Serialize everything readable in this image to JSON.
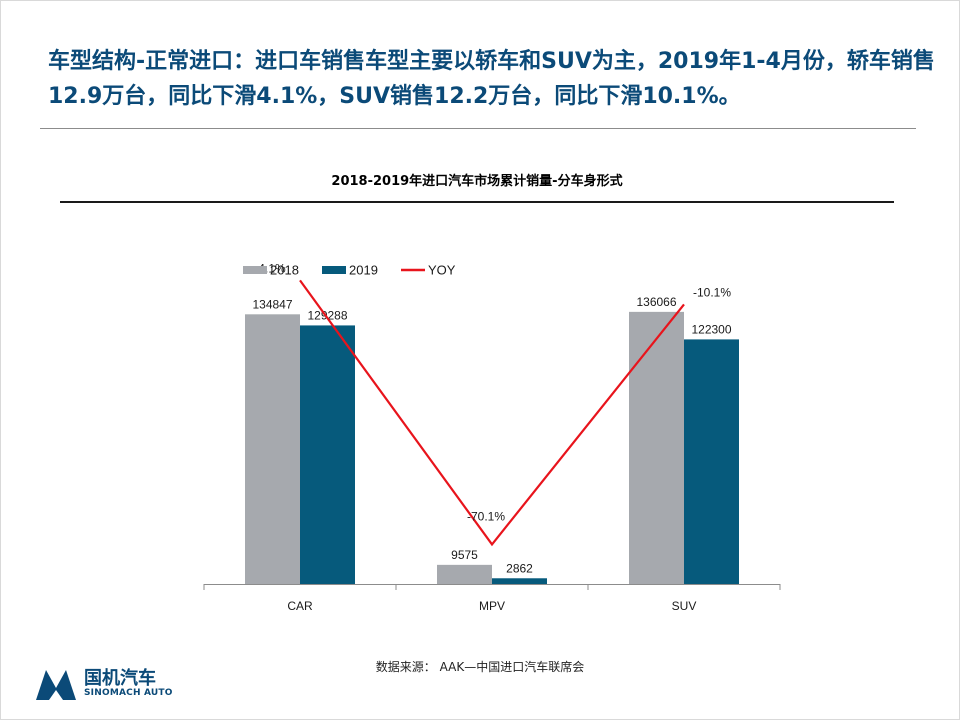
{
  "headline": "车型结构-正常进口：进口车销售车型主要以轿车和SUV为主，2019年1-4月份，轿车销售12.9万台，同比下滑4.1%，SUV销售12.2万台，同比下滑10.1%。",
  "source": "数据来源：  AAK—中国进口汽车联席会",
  "logo": {
    "cn": "国机汽车",
    "en": "SINOMACH AUTO",
    "color": "#0b4a78"
  },
  "chart_data": {
    "type": "bar",
    "title": "2018-2019年进口汽车市场累计销量-分车身形式",
    "categories": [
      "CAR",
      "MPV",
      "SUV"
    ],
    "series": [
      {
        "name": "2018",
        "type": "bar",
        "values": [
          134847,
          9575,
          136066
        ],
        "labels": [
          "134847",
          "9575",
          "136066"
        ],
        "color": "#a6a9ae"
      },
      {
        "name": "2019",
        "type": "bar",
        "values": [
          129288,
          2862,
          122300
        ],
        "labels": [
          "129288",
          "2862",
          "122300"
        ],
        "color": "#065a7c"
      },
      {
        "name": "YOY",
        "type": "line",
        "axis": "secondary",
        "values": [
          -4.1,
          -70.1,
          -10.1
        ],
        "labels": [
          "-4.1%",
          "-70.1%",
          "-10.1%"
        ],
        "color": "#e8141c"
      }
    ],
    "ylim": [
      0,
      160000
    ],
    "y2lim": [
      -80,
      0
    ],
    "legend": "top-left",
    "grid": false
  }
}
